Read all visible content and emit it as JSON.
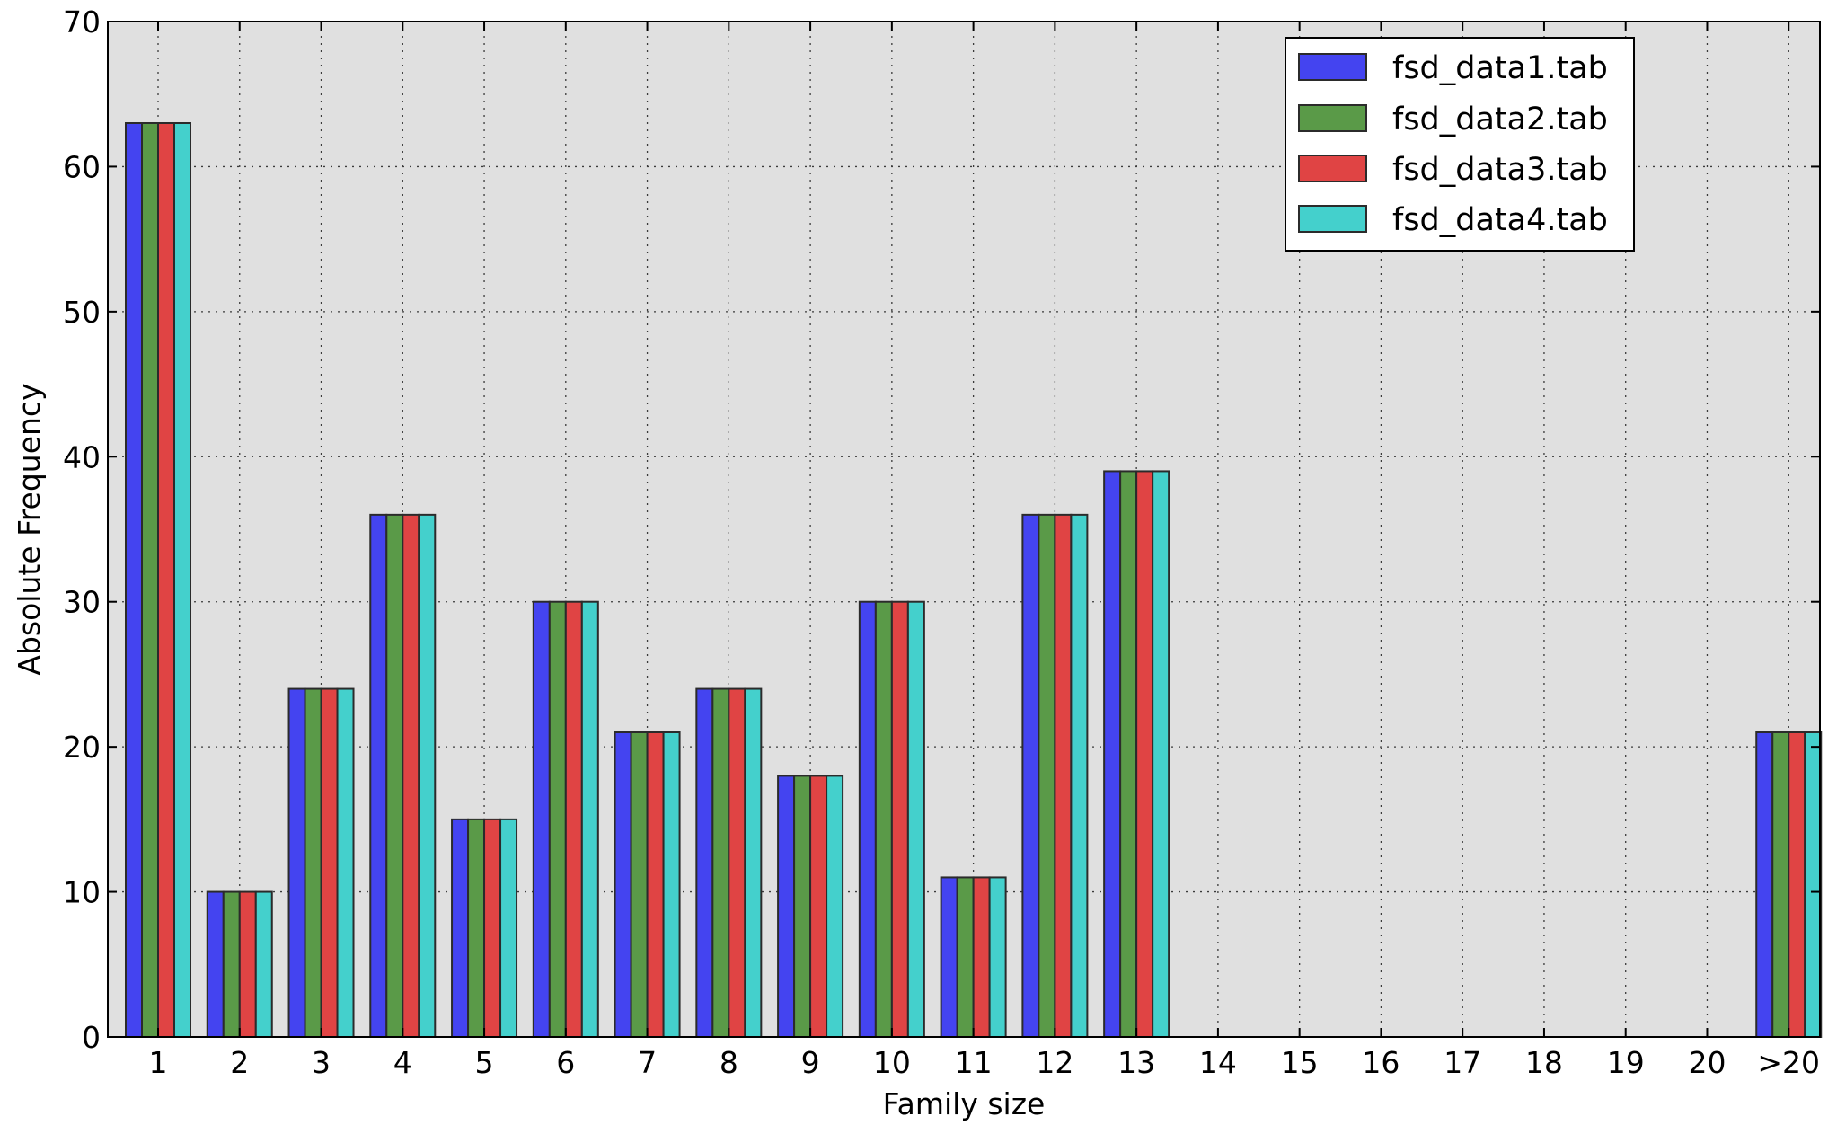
{
  "chart_data": {
    "type": "bar",
    "xlabel": "Family size",
    "ylabel": "Absolute Frequency",
    "categories": [
      "1",
      "2",
      "3",
      "4",
      "5",
      "6",
      "7",
      "8",
      "9",
      "10",
      "11",
      "12",
      "13",
      "14",
      "15",
      "16",
      "17",
      "18",
      "19",
      "20",
      ">20"
    ],
    "ylim": [
      0,
      70
    ],
    "yticks": [
      "0",
      "10",
      "20",
      "30",
      "40",
      "50",
      "60",
      "70"
    ],
    "grid": true,
    "legend_position": "top-right",
    "background": "#e0e0e0",
    "series": [
      {
        "name": "fsd_data1.tab",
        "color": "#4444f0",
        "values": [
          63,
          10,
          24,
          36,
          15,
          30,
          21,
          24,
          18,
          30,
          11,
          36,
          39,
          0,
          0,
          0,
          0,
          0,
          0,
          0,
          21
        ]
      },
      {
        "name": "fsd_data2.tab",
        "color": "#5a9a48",
        "values": [
          63,
          10,
          24,
          36,
          15,
          30,
          21,
          24,
          18,
          30,
          11,
          36,
          39,
          0,
          0,
          0,
          0,
          0,
          0,
          0,
          21
        ]
      },
      {
        "name": "fsd_data3.tab",
        "color": "#e04444",
        "values": [
          63,
          10,
          24,
          36,
          15,
          30,
          21,
          24,
          18,
          30,
          11,
          36,
          39,
          0,
          0,
          0,
          0,
          0,
          0,
          0,
          21
        ]
      },
      {
        "name": "fsd_data4.tab",
        "color": "#44d0cc",
        "values": [
          63,
          10,
          24,
          36,
          15,
          30,
          21,
          24,
          18,
          30,
          11,
          36,
          39,
          0,
          0,
          0,
          0,
          0,
          0,
          0,
          21
        ]
      }
    ]
  }
}
